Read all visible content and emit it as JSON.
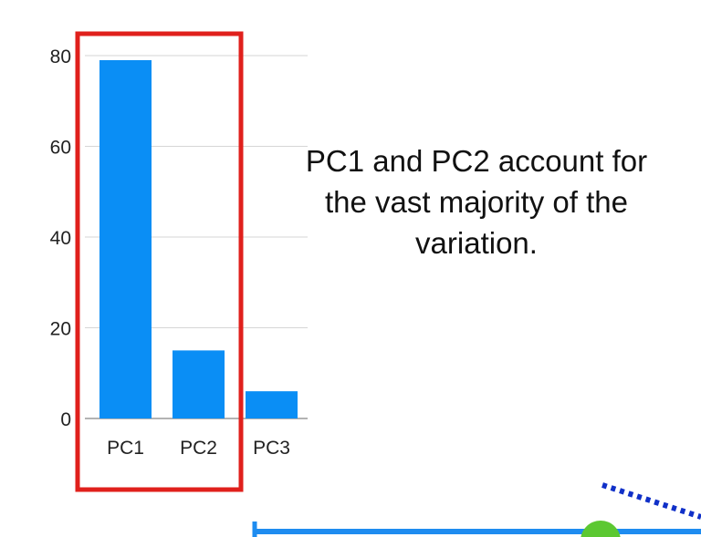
{
  "chart_data": {
    "type": "bar",
    "categories": [
      "PC1",
      "PC2",
      "PC3"
    ],
    "values": [
      79,
      15,
      6
    ],
    "ylim": [
      0,
      80
    ],
    "yticks": [
      0,
      20,
      40,
      60,
      80
    ],
    "grid": true,
    "bar_color": "#0a8ef5",
    "title": "",
    "xlabel": "",
    "ylabel": ""
  },
  "annotation": {
    "lines": [
      "PC1 and PC2 account for",
      "the vast majority of the",
      "variation."
    ]
  },
  "highlight": {
    "color": "#e0201c",
    "covers": [
      "PC1",
      "PC2"
    ]
  },
  "decorations": {
    "line_color": "#1e8cf0",
    "dots_color": "#1030c8",
    "marker_color": "#5cc832"
  }
}
